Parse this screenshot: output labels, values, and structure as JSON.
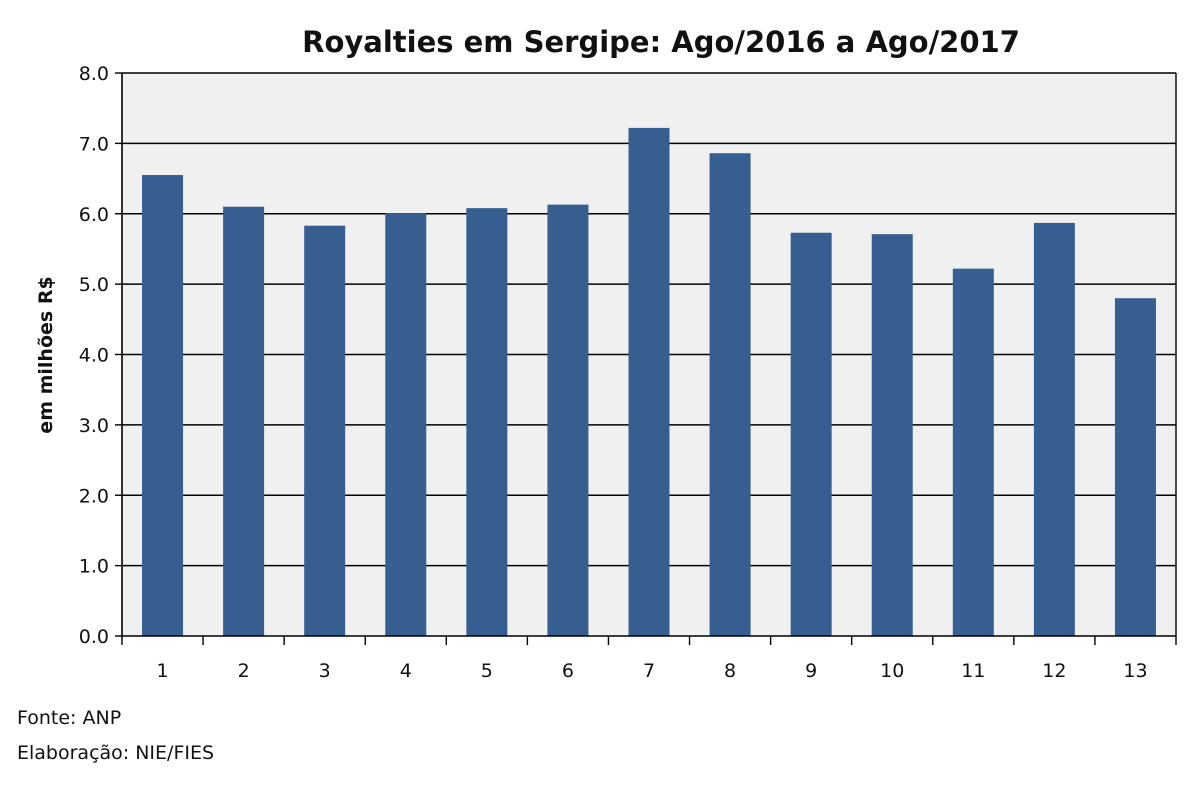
{
  "chart_data": {
    "type": "bar",
    "title": "Royalties em Sergipe: Ago/2016 a Ago/2017",
    "xlabel": "",
    "ylabel": "em milhões R$",
    "categories": [
      "1",
      "2",
      "3",
      "4",
      "5",
      "6",
      "7",
      "8",
      "9",
      "10",
      "11",
      "12",
      "13"
    ],
    "values": [
      6.55,
      6.1,
      5.83,
      6.01,
      6.08,
      6.13,
      7.22,
      6.86,
      5.73,
      5.71,
      5.22,
      5.87,
      4.8
    ],
    "ylim": [
      0,
      8
    ],
    "yticks": [
      "0.0",
      "1.0",
      "2.0",
      "3.0",
      "4.0",
      "5.0",
      "6.0",
      "7.0",
      "8.0"
    ],
    "grid": true,
    "legend": "none",
    "colors": {
      "bar": "#375e91",
      "plot_bg": "#f0f0f0",
      "gridline": "#000000"
    }
  },
  "footer": {
    "source": "Fonte: ANP",
    "credit": "Elaboração: NIE/FIES"
  }
}
